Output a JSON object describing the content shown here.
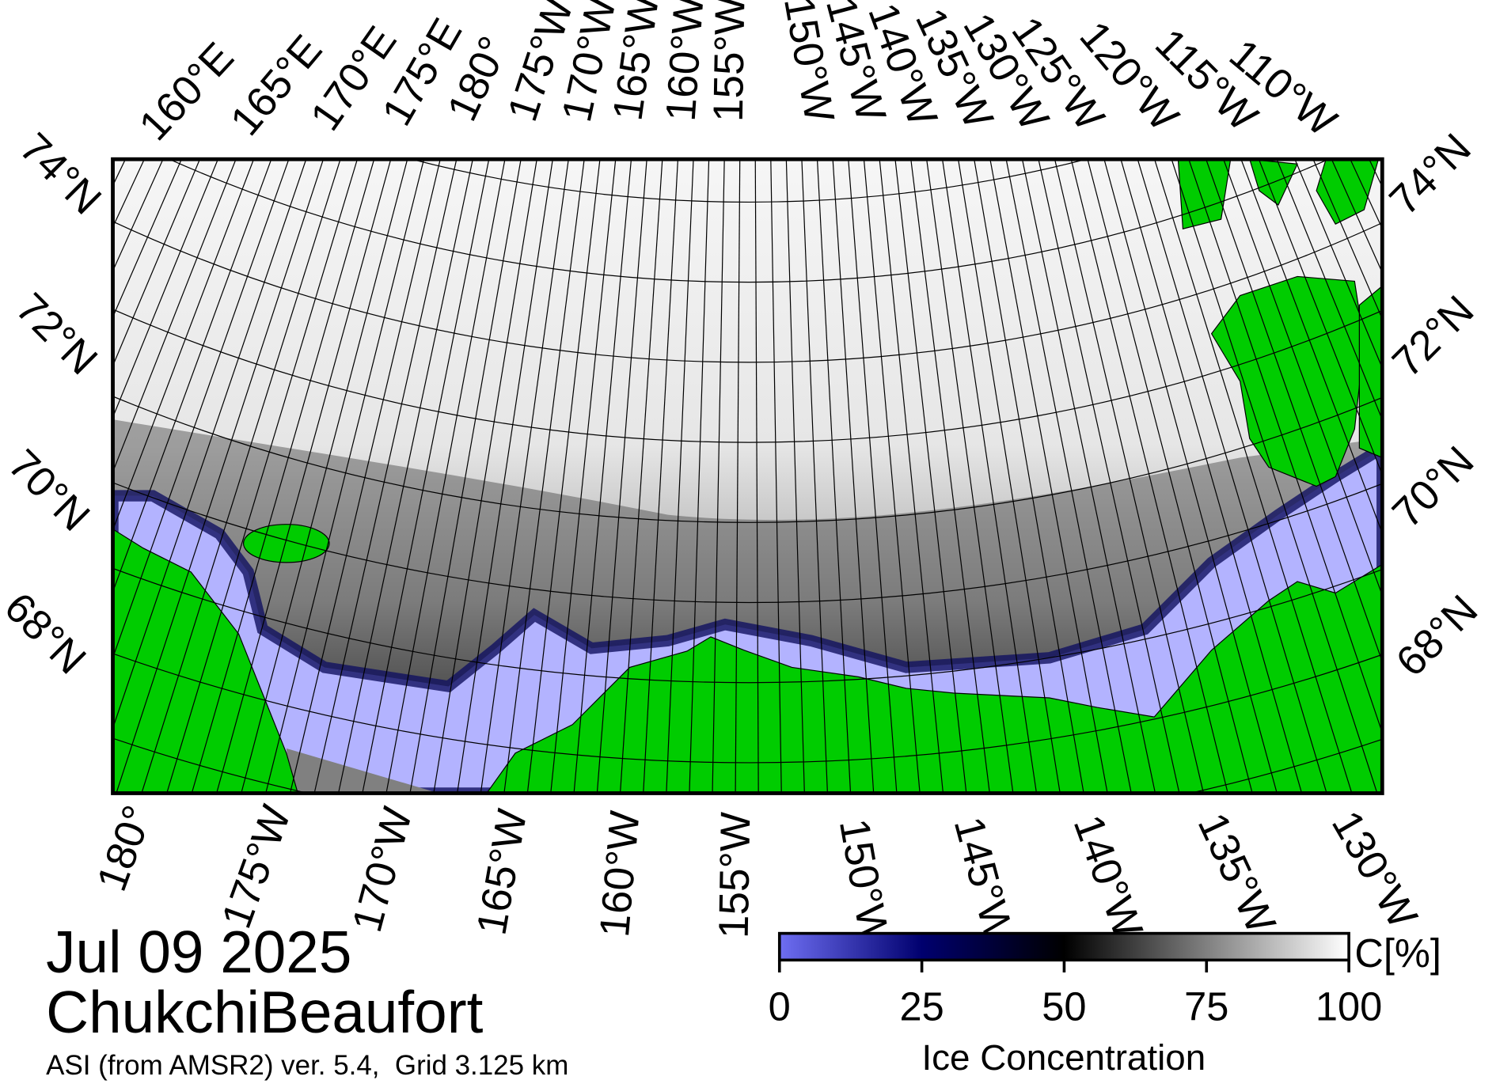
{
  "title": "Jul 09 2025",
  "region": "ChukchiBeaufort",
  "source": "ASI (from AMSR2) ver. 5.4,  Grid 3.125 km",
  "map": {
    "top_labels": [
      "160°E",
      "165°E",
      "170°E",
      "175°E",
      "180°",
      "175°W",
      "170°W",
      "165°W",
      "160°W",
      "155°W",
      "150°W",
      "145°W",
      "140°W",
      "135°W",
      "130°W",
      "125°W",
      "120°W",
      "115°W",
      "110°W"
    ],
    "bottom_labels": [
      "180°",
      "175°W",
      "170°W",
      "165°W",
      "160°W",
      "155°W",
      "150°W",
      "145°W",
      "140°W",
      "135°W",
      "130°W"
    ],
    "left_labels": [
      "74°N",
      "72°N",
      "70°N",
      "68°N"
    ],
    "right_labels": [
      "74°N",
      "72°N",
      "70°N",
      "68°N"
    ]
  },
  "colorbar": {
    "label": "Ice Concentration",
    "unit": "C[%]",
    "lim": [
      0,
      100
    ],
    "ticks": [
      0,
      25,
      50,
      75,
      100
    ],
    "colors": [
      "#6e6ef2",
      "#00006e",
      "#000000",
      "#808080",
      "#ffffff"
    ]
  }
}
